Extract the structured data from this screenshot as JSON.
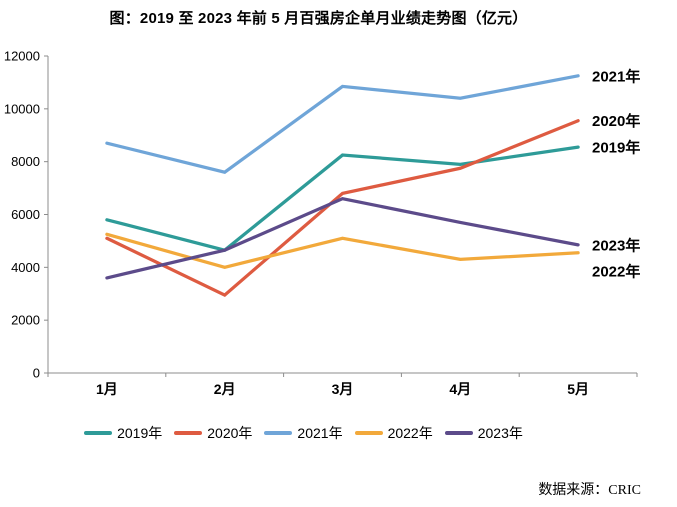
{
  "page": {
    "source": "数据来源：CRIC"
  },
  "chart_data": {
    "type": "line",
    "title": "图：2019 至 2023 年前 5 月百强房企单月业绩走势图（亿元）",
    "categories": [
      "1月",
      "2月",
      "3月",
      "4月",
      "5月"
    ],
    "series": [
      {
        "name": "2019年",
        "color": "#2E9B98",
        "values": [
          5800,
          4650,
          8250,
          7900,
          8550
        ]
      },
      {
        "name": "2020年",
        "color": "#DE5B41",
        "values": [
          5100,
          2950,
          6800,
          7750,
          9550
        ]
      },
      {
        "name": "2021年",
        "color": "#6FA5D8",
        "values": [
          8700,
          7600,
          10850,
          10400,
          11250
        ]
      },
      {
        "name": "2022年",
        "color": "#F2A93B",
        "values": [
          5250,
          4000,
          5100,
          4300,
          4550
        ]
      },
      {
        "name": "2023年",
        "color": "#5C4B8A",
        "values": [
          3600,
          4650,
          6600,
          5700,
          4850
        ]
      }
    ],
    "ylim": [
      0,
      12000
    ],
    "yticks": [
      0,
      2000,
      4000,
      6000,
      8000,
      10000,
      12000
    ],
    "xlabel": "",
    "ylabel": "",
    "grid": false,
    "legend_position": "bottom",
    "end_labels": true,
    "axis_color": "#8C8C8C"
  }
}
